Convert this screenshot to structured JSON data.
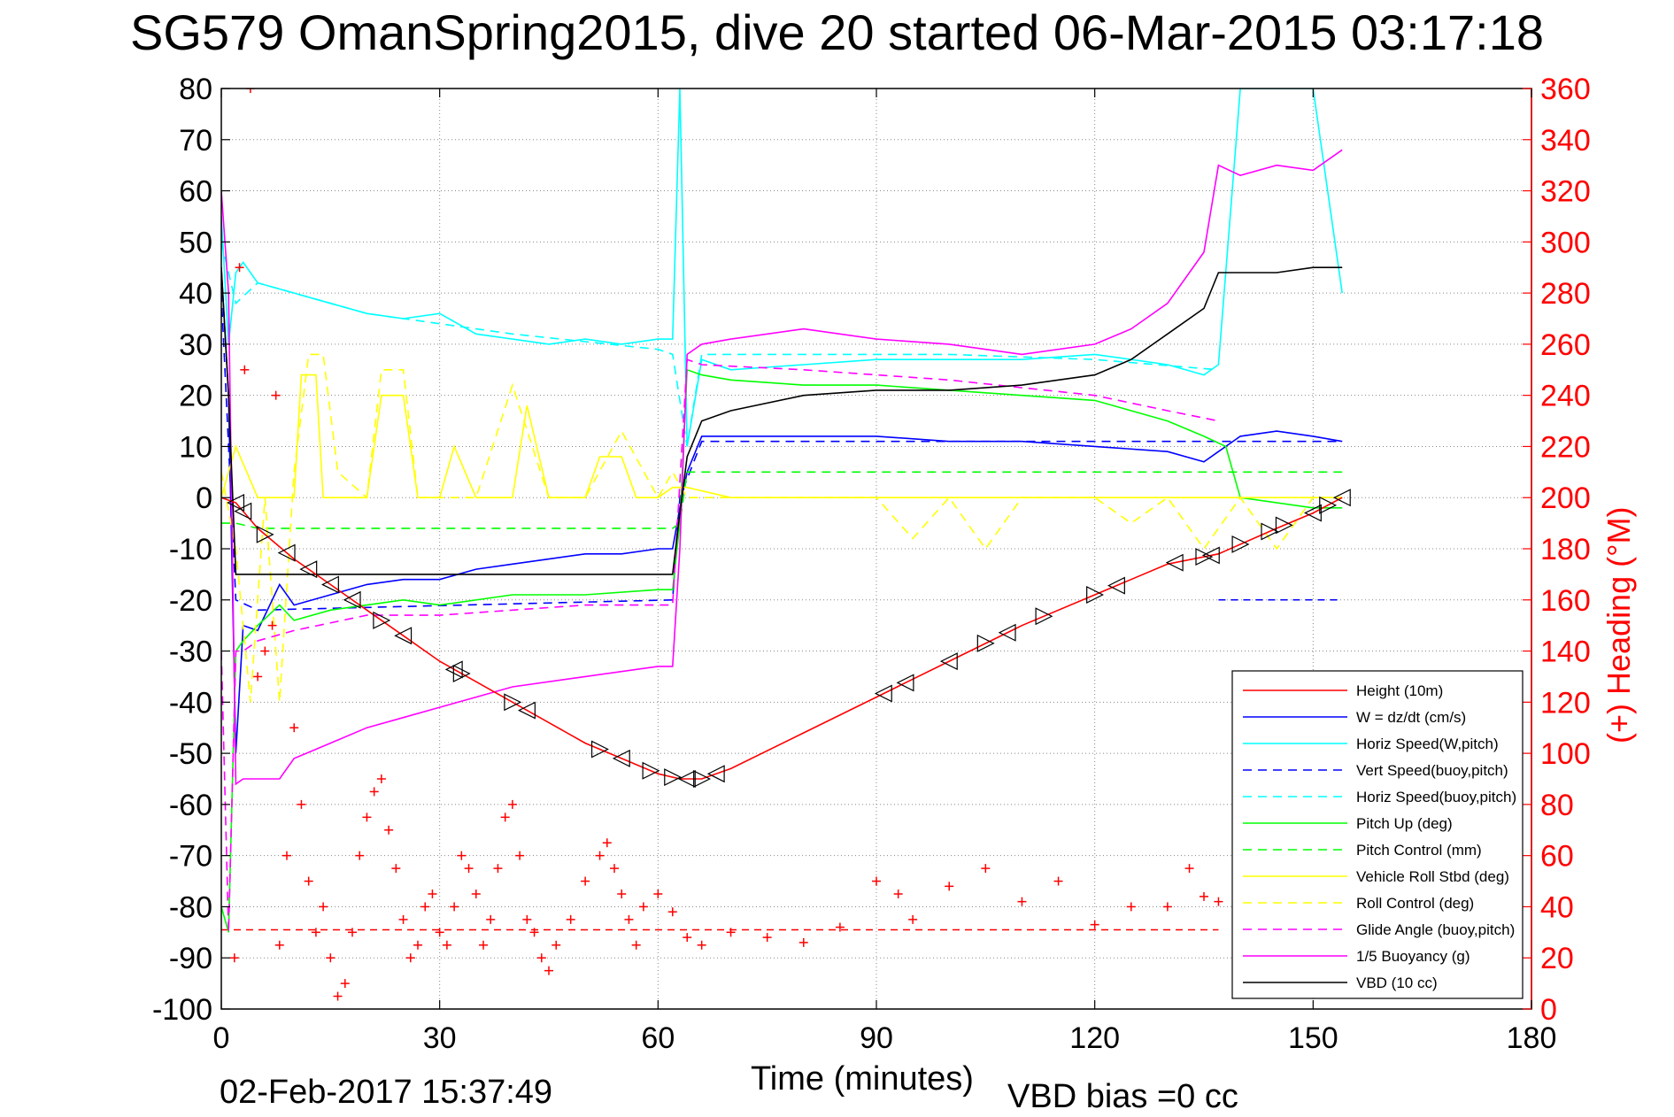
{
  "title": "SG579 OmanSpring2015, dive 20 started 06-Mar-2015 03:17:18",
  "footer": {
    "timestamp": "02-Feb-2017 15:37:49",
    "vbd_bias": "VBD bias =0 cc"
  },
  "chart_data": {
    "type": "line",
    "title": "SG579 OmanSpring2015, dive 20 started 06-Mar-2015 03:17:18",
    "xlabel": "Time (minutes)",
    "ylabel": "",
    "ylabel_right": "(+) Heading (°M)",
    "xlim": [
      0,
      180
    ],
    "ylim": [
      -100,
      80
    ],
    "ylim_right": [
      0,
      360
    ],
    "x_ticks": [
      "0",
      "30",
      "60",
      "90",
      "120",
      "150",
      "180"
    ],
    "y_ticks": [
      "80",
      "70",
      "60",
      "50",
      "40",
      "30",
      "20",
      "10",
      "0",
      "-10",
      "-20",
      "-30",
      "-40",
      "-50",
      "-60",
      "-70",
      "-80",
      "-90",
      "-100"
    ],
    "y_right_ticks": [
      "360",
      "340",
      "320",
      "300",
      "280",
      "260",
      "240",
      "220",
      "200",
      "180",
      "160",
      "140",
      "120",
      "100",
      "80",
      "60",
      "40",
      "20",
      "0"
    ],
    "grid": true,
    "legend_position": "bottom-right",
    "colors": {
      "height": "#ff0000",
      "w": "#0000ff",
      "horiz_speed": "#00ffff",
      "pitch": "#00ff00",
      "roll": "#ffff00",
      "buoyancy": "#ff00ff",
      "vbd": "#000000",
      "heading": "#ff0000"
    },
    "series": [
      {
        "name": "Height (10m)",
        "color": "#ff0000",
        "style": "solid",
        "x": [
          0,
          2,
          5,
          10,
          15,
          20,
          25,
          30,
          35,
          40,
          45,
          50,
          55,
          60,
          63,
          66,
          70,
          80,
          90,
          100,
          110,
          120,
          130,
          137,
          145,
          150,
          154
        ],
        "y": [
          0,
          -1,
          -6,
          -12,
          -17,
          -22,
          -27,
          -32,
          -36,
          -40,
          -44,
          -48,
          -51,
          -54,
          -55,
          -55,
          -53,
          -46,
          -39,
          -32,
          -25,
          -19,
          -13,
          -11,
          -6,
          -3,
          0
        ]
      },
      {
        "name": "W = dz/dt (cm/s)",
        "color": "#0000ff",
        "style": "solid",
        "x": [
          0,
          1,
          2,
          3,
          5,
          8,
          10,
          15,
          20,
          25,
          30,
          35,
          40,
          45,
          50,
          55,
          60,
          62,
          63,
          64,
          66,
          70,
          80,
          90,
          100,
          110,
          120,
          130,
          135,
          137,
          140,
          145,
          150,
          154
        ],
        "y": [
          45,
          20,
          -50,
          -25,
          -26,
          -17,
          -21,
          -19,
          -17,
          -16,
          -16,
          -14,
          -13,
          -12,
          -11,
          -11,
          -10,
          -10,
          -2,
          5,
          12,
          12,
          12,
          12,
          11,
          11,
          10,
          9,
          7,
          9,
          12,
          13,
          12,
          11
        ]
      },
      {
        "name": "Horiz Speed(W,pitch)",
        "color": "#00ffff",
        "style": "solid",
        "x": [
          0,
          1,
          2,
          3,
          5,
          10,
          15,
          20,
          25,
          30,
          35,
          40,
          45,
          50,
          55,
          60,
          62,
          63,
          64,
          66,
          70,
          80,
          90,
          100,
          110,
          120,
          130,
          135,
          137,
          140,
          150,
          154
        ],
        "y": [
          55,
          30,
          44,
          46,
          42,
          40,
          38,
          36,
          35,
          36,
          32,
          31,
          30,
          31,
          30,
          31,
          31,
          80,
          10,
          27,
          25,
          26,
          27,
          27,
          27,
          28,
          26,
          24,
          26,
          80,
          80,
          40
        ]
      },
      {
        "name": "Vert Speed(buoy,pitch)",
        "color": "#0000ff",
        "style": "dashed",
        "x": [
          0,
          2,
          5,
          62,
          63,
          66,
          137,
          154
        ],
        "y": [
          40,
          -20,
          -22,
          -20,
          0,
          11,
          11,
          11
        ]
      },
      {
        "name": "Horiz Speed(buoy,pitch)",
        "color": "#00ffff",
        "style": "dashed",
        "x": [
          0,
          2,
          5,
          10,
          20,
          40,
          60,
          62,
          64,
          66,
          80,
          100,
          120,
          137
        ],
        "y": [
          50,
          38,
          42,
          40,
          36,
          32,
          29,
          28,
          10,
          28,
          28,
          28,
          27,
          25
        ]
      },
      {
        "name": "Pitch Up (deg)",
        "color": "#00ff00",
        "style": "solid",
        "x": [
          0,
          1,
          2,
          3,
          5,
          8,
          10,
          15,
          20,
          25,
          30,
          40,
          50,
          60,
          62,
          63,
          64,
          66,
          70,
          80,
          90,
          100,
          110,
          120,
          130,
          135,
          138,
          140,
          150,
          154
        ],
        "y": [
          -80,
          -85,
          -30,
          -28,
          -25,
          -21,
          -24,
          -22,
          -21,
          -20,
          -21,
          -19,
          -19,
          -18,
          -18,
          -5,
          25,
          24,
          23,
          22,
          22,
          21,
          20,
          19,
          15,
          12,
          10,
          0,
          -2,
          -2
        ]
      },
      {
        "name": "Pitch Control (mm)",
        "color": "#00ff00",
        "style": "dashed",
        "x": [
          0,
          2,
          5,
          62,
          63,
          64,
          154
        ],
        "y": [
          -5,
          -5,
          -6,
          -6,
          -5,
          5,
          5
        ]
      },
      {
        "name": "Vehicle Roll Stbd (deg)",
        "color": "#ffff00",
        "style": "solid",
        "x": [
          0,
          2,
          5,
          10,
          11,
          13,
          14,
          20,
          22,
          25,
          27,
          30,
          32,
          35,
          40,
          42,
          45,
          50,
          52,
          55,
          57,
          60,
          62,
          64,
          70,
          90,
          110,
          130,
          140,
          150,
          154
        ],
        "y": [
          0,
          10,
          0,
          0,
          24,
          24,
          0,
          0,
          20,
          20,
          0,
          0,
          10,
          0,
          0,
          18,
          0,
          0,
          8,
          8,
          0,
          0,
          2,
          2,
          0,
          0,
          0,
          0,
          0,
          0,
          0
        ]
      },
      {
        "name": "Roll Control (deg)",
        "color": "#ffff00",
        "style": "dashed",
        "x": [
          0,
          2,
          4,
          6,
          8,
          10,
          12,
          14,
          16,
          20,
          22,
          25,
          27,
          30,
          35,
          40,
          45,
          50,
          55,
          60,
          62,
          64,
          90,
          95,
          100,
          105,
          110,
          120,
          125,
          130,
          135,
          140,
          145,
          150,
          154
        ],
        "y": [
          5,
          -10,
          -40,
          0,
          -40,
          5,
          28,
          28,
          5,
          0,
          25,
          25,
          0,
          0,
          0,
          22,
          0,
          0,
          13,
          0,
          5,
          0,
          0,
          -8,
          0,
          -10,
          0,
          0,
          -5,
          0,
          -10,
          0,
          -10,
          0,
          0
        ]
      },
      {
        "name": "Glide Angle (buoy,pitch)",
        "color": "#ff00ff",
        "style": "dashed",
        "x": [
          0,
          1,
          2,
          3,
          5,
          10,
          20,
          30,
          40,
          50,
          60,
          62,
          64,
          66,
          80,
          100,
          120,
          130,
          137
        ],
        "y": [
          -30,
          -85,
          -30,
          -30,
          -28,
          -26,
          -23,
          -23,
          -22,
          -21,
          -21,
          -21,
          27,
          26,
          25,
          23,
          20,
          17,
          15
        ]
      },
      {
        "name": "1/5 Buoyancy (g)",
        "color": "#ff00ff",
        "style": "solid",
        "x": [
          0,
          1,
          2,
          3,
          5,
          8,
          10,
          15,
          20,
          25,
          30,
          35,
          40,
          50,
          60,
          62,
          63,
          64,
          66,
          70,
          80,
          90,
          100,
          110,
          120,
          125,
          130,
          135,
          137,
          140,
          145,
          150,
          154
        ],
        "y": [
          60,
          40,
          -56,
          -55,
          -55,
          -55,
          -51,
          -48,
          -45,
          -43,
          -41,
          -39,
          -37,
          -35,
          -33,
          -33,
          -10,
          28,
          30,
          31,
          33,
          31,
          30,
          28,
          30,
          33,
          38,
          48,
          65,
          63,
          65,
          64,
          68
        ]
      },
      {
        "name": "VBD (10 cc)",
        "color": "#000000",
        "style": "solid",
        "x": [
          0,
          1,
          2,
          3,
          30,
          62,
          63,
          64,
          66,
          70,
          80,
          90,
          100,
          110,
          115,
          120,
          125,
          130,
          135,
          137,
          138,
          145,
          150,
          154
        ],
        "y": [
          45,
          20,
          -15,
          -15,
          -15,
          -15,
          -3,
          8,
          15,
          17,
          20,
          21,
          21,
          22,
          23,
          24,
          27,
          32,
          37,
          44,
          44,
          44,
          45,
          45
        ]
      }
    ],
    "heading_series": {
      "name": "(+) Heading (°M)",
      "color": "#ff0000",
      "marker": "+",
      "x": [
        1.8,
        2.5,
        3.2,
        4,
        5,
        6,
        7,
        7.5,
        8,
        9,
        10,
        11,
        12,
        13,
        14,
        15,
        16,
        17,
        18,
        19,
        20,
        21,
        22,
        23,
        24,
        25,
        26,
        27,
        28,
        29,
        30,
        31,
        32,
        33,
        34,
        35,
        36,
        37,
        38,
        39,
        40,
        41,
        42,
        43,
        44,
        45,
        46,
        48,
        50,
        52,
        53,
        54,
        55,
        56,
        57,
        58,
        60,
        62,
        64,
        66,
        70,
        75,
        80,
        85,
        90,
        93,
        95,
        100,
        105,
        110,
        115,
        120,
        125,
        130,
        133,
        135,
        137
      ],
      "y": [
        20,
        290,
        250,
        360,
        130,
        140,
        150,
        240,
        25,
        60,
        110,
        80,
        50,
        30,
        40,
        20,
        5,
        10,
        30,
        60,
        75,
        85,
        90,
        70,
        55,
        35,
        20,
        25,
        40,
        45,
        30,
        25,
        40,
        60,
        55,
        45,
        25,
        35,
        55,
        75,
        80,
        60,
        35,
        30,
        20,
        15,
        25,
        35,
        50,
        60,
        65,
        55,
        45,
        35,
        25,
        40,
        45,
        38,
        28,
        25,
        30,
        28,
        26,
        32,
        50,
        45,
        35,
        48,
        55,
        42,
        50,
        33,
        40,
        40,
        55,
        44,
        42
      ]
    },
    "vbd_dashed_level": -84.5,
    "vert_speed_late_level": -20,
    "triangle_markers": {
      "x": [
        2,
        3,
        6,
        9,
        12,
        15,
        18,
        22,
        25,
        32,
        33,
        40,
        42,
        52,
        55,
        59,
        62,
        64,
        66,
        68,
        91,
        94,
        100,
        105,
        108,
        113,
        120,
        123,
        131,
        135,
        136,
        140,
        144,
        146,
        150,
        152,
        154
      ],
      "dir": [
        "l",
        "l",
        "r",
        "l",
        "l",
        "l",
        "l",
        "r",
        "l",
        "l",
        "r",
        "r",
        "l",
        "r",
        "l",
        "r",
        "r",
        "l",
        "r",
        "l",
        "l",
        "l",
        "l",
        "r",
        "l",
        "r",
        "r",
        "l",
        "l",
        "r",
        "l",
        "r",
        "r",
        "r",
        "l",
        "r",
        "l"
      ]
    },
    "legend": [
      {
        "label": "Height (10m)",
        "color": "#ff0000",
        "style": "solid"
      },
      {
        "label": "W = dz/dt (cm/s)",
        "color": "#0000ff",
        "style": "solid"
      },
      {
        "label": "Horiz Speed(W,pitch)",
        "color": "#00ffff",
        "style": "solid"
      },
      {
        "label": "Vert Speed(buoy,pitch)",
        "color": "#0000ff",
        "style": "dashed"
      },
      {
        "label": "Horiz Speed(buoy,pitch)",
        "color": "#00ffff",
        "style": "dashed"
      },
      {
        "label": "Pitch Up (deg)",
        "color": "#00ff00",
        "style": "solid"
      },
      {
        "label": "Pitch Control (mm)",
        "color": "#00ff00",
        "style": "dashed"
      },
      {
        "label": "Vehicle Roll Stbd (deg)",
        "color": "#ffff00",
        "style": "solid"
      },
      {
        "label": "Roll Control (deg)",
        "color": "#ffff00",
        "style": "dashed"
      },
      {
        "label": "Glide Angle (buoy,pitch)",
        "color": "#ff00ff",
        "style": "dashed"
      },
      {
        "label": "1/5 Buoyancy (g)",
        "color": "#ff00ff",
        "style": "solid"
      },
      {
        "label": "VBD (10 cc)",
        "color": "#000000",
        "style": "solid"
      }
    ]
  }
}
